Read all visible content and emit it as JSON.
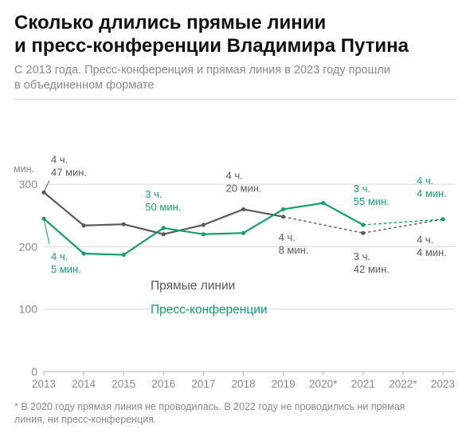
{
  "header": {
    "title_line1": "Сколько длились прямые линии",
    "title_line2": "и пресс-конференции Владимира Путина",
    "subtitle_line1": "С 2013 года. Пресс-конференция и прямая линия в 2023 году прошли",
    "subtitle_line2": "в объединенном формате"
  },
  "footnote": {
    "line1": "* В 2020 году прямая линия не проводилась. В 2022 году не проводились ни прямая",
    "line2": "линия, ни пресс-конференция."
  },
  "colors": {
    "direct_line": "#5a5a5a",
    "press_conf": "#12a070",
    "axis_text": "#8a8a8a",
    "grid": "#d9d9d9"
  },
  "chart_data": {
    "type": "line",
    "ylabel": "мин.",
    "ylim": [
      0,
      300
    ],
    "yticks": [
      "0",
      "100",
      "200",
      "300"
    ],
    "categories": [
      "2013",
      "2014",
      "2015",
      "2016",
      "2017",
      "2018",
      "2019",
      "2020*",
      "2021",
      "2022*",
      "2023"
    ],
    "grid": true,
    "series": [
      {
        "name": "Прямые линии",
        "values": [
          287,
          234,
          236,
          220,
          235,
          260,
          248,
          null,
          222,
          null,
          244
        ],
        "dashed_segments": [
          [
            6,
            8
          ],
          [
            8,
            10
          ]
        ]
      },
      {
        "name": "Пресс-конференции",
        "values": [
          245,
          189,
          187,
          230,
          220,
          222,
          260,
          270,
          235,
          null,
          244
        ],
        "dashed_segments": [
          [
            8,
            10
          ]
        ]
      }
    ],
    "annotations": [
      {
        "series": 0,
        "index": 0,
        "lines": [
          "4 ч.",
          "47 мин."
        ]
      },
      {
        "series": 1,
        "index": 0,
        "lines": [
          "4 ч.",
          "5 мин."
        ]
      },
      {
        "series": 1,
        "index": 3,
        "lines": [
          "3 ч.",
          "50 мин."
        ]
      },
      {
        "series": 0,
        "index": 5,
        "lines": [
          "4 ч.",
          "20 мин."
        ]
      },
      {
        "series": 0,
        "index": 6,
        "lines": [
          "4 ч.",
          "8 мин."
        ]
      },
      {
        "series": 1,
        "index": 8,
        "lines": [
          "3 ч.",
          "55 мин."
        ]
      },
      {
        "series": 0,
        "index": 8,
        "lines": [
          "3 ч.",
          "42 мин."
        ]
      },
      {
        "series": 1,
        "index": 10,
        "lines": [
          "4 ч.",
          "4 мин."
        ]
      },
      {
        "series": 0,
        "index": 10,
        "lines": [
          "4 ч.",
          "4 мин."
        ]
      }
    ],
    "legend": [
      "Прямые линии",
      "Пресс-конференции"
    ]
  }
}
